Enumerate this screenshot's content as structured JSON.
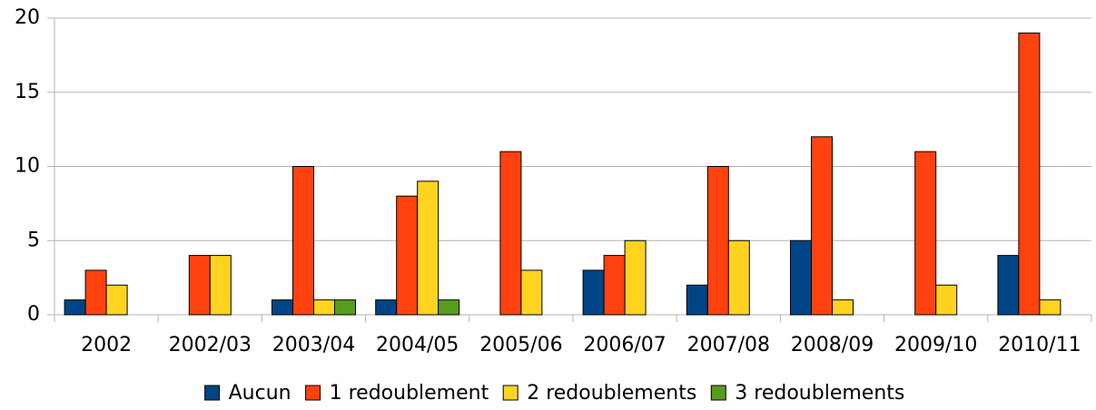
{
  "chart_data": {
    "type": "bar",
    "categories": [
      "2002",
      "2002/03",
      "2003/04",
      "2004/05",
      "2005/06",
      "2006/07",
      "2007/08",
      "2008/09",
      "2009/10",
      "2010/11"
    ],
    "series": [
      {
        "name": "Aucun",
        "color": "#004586",
        "values": [
          1,
          0,
          1,
          1,
          0,
          3,
          2,
          5,
          0,
          4
        ]
      },
      {
        "name": "1 redoublement",
        "color": "#ff420e",
        "values": [
          3,
          4,
          10,
          8,
          11,
          4,
          10,
          12,
          11,
          19
        ]
      },
      {
        "name": "2 redoublements",
        "color": "#ffd320",
        "values": [
          2,
          4,
          1,
          9,
          3,
          5,
          5,
          1,
          2,
          1
        ]
      },
      {
        "name": "3 redoublements",
        "color": "#579d1c",
        "values": [
          0,
          0,
          1,
          1,
          0,
          0,
          0,
          0,
          0,
          0
        ]
      }
    ],
    "ylim": [
      0,
      20
    ],
    "yticks": [
      0,
      5,
      10,
      15,
      20
    ],
    "grid": true,
    "legend": "bottom"
  }
}
